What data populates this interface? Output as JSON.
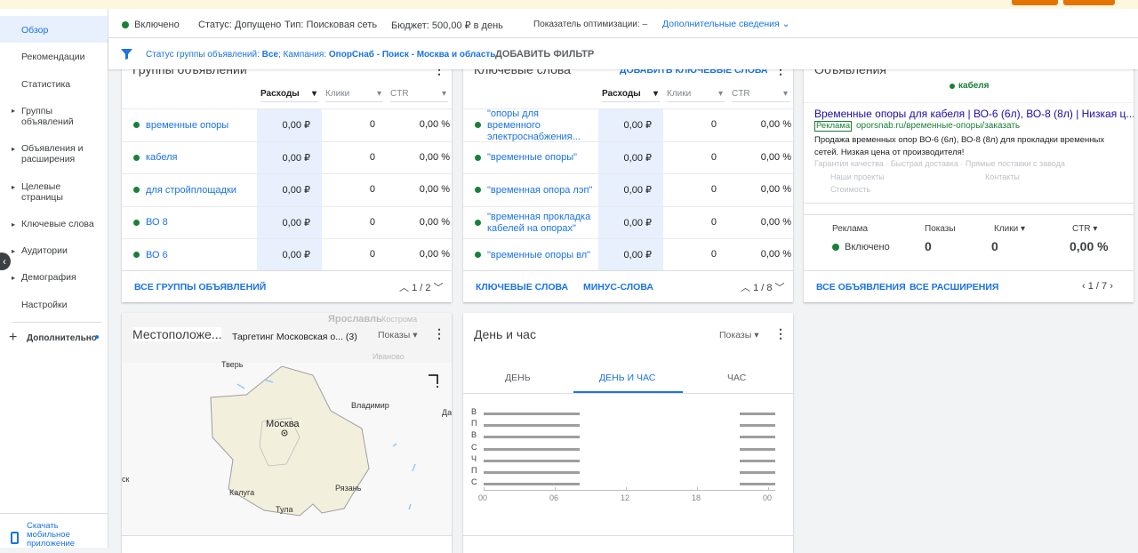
{
  "sidebar": {
    "items": [
      "Обзор",
      "Рекомендации",
      "Статистика",
      "Группы объявлений",
      "Объявления и расширения",
      "Целевые страницы",
      "Ключевые слова",
      "Аудитории",
      "Демография",
      "Настройки"
    ],
    "more": "Дополнительно",
    "mobile": "Скачать мобильное приложение"
  },
  "topbar": {
    "status": "Включено",
    "approval": "Статус: Допущено",
    "type": "Тип: Поисковая сеть",
    "budget": "Бюджет: 500,00 ₽ в день",
    "score": "Показатель оптимизации: –",
    "details": "Дополнительные сведения"
  },
  "filter": {
    "label1": "Статус группы объявлений:",
    "value1": "Все",
    "label2": "; Кампания:",
    "value2": "ОпорСнаб - Поиск - Москва и область",
    "add": "ДОБАВИТЬ ФИЛЬТР"
  },
  "ad_groups": {
    "title": "Группы объявлений",
    "columns": [
      "Расходы",
      "Клики",
      "CTR"
    ],
    "rows": [
      [
        "временные опоры",
        "0,00 ₽",
        "0",
        "0,00 %"
      ],
      [
        "кабеля",
        "0,00 ₽",
        "0",
        "0,00 %"
      ],
      [
        "для стройплощадки",
        "0,00 ₽",
        "0",
        "0,00 %"
      ],
      [
        "ВО 8",
        "0,00 ₽",
        "0",
        "0,00 %"
      ],
      [
        "ВО 6",
        "0,00 ₽",
        "0",
        "0,00 %"
      ]
    ],
    "links": [
      "ВСЕ ГРУППЫ ОБЪЯВЛЕНИЙ"
    ],
    "pager": "1 / 2"
  },
  "keywords": {
    "title": "Ключевые слова",
    "action": "ДОБАВИТЬ КЛЮЧЕВЫЕ СЛОВА",
    "columns": [
      "Расходы",
      "Клики",
      "CTR"
    ],
    "rows": [
      [
        "\"опоры для временного электроснабжения...",
        "0,00 ₽",
        "0",
        "0,00 %"
      ],
      [
        "\"временные опоры\"",
        "0,00 ₽",
        "0",
        "0,00 %"
      ],
      [
        "\"временная опора лэп\"",
        "0,00 ₽",
        "0",
        "0,00 %"
      ],
      [
        "\"временная прокладка кабелей на опорах\"",
        "0,00 ₽",
        "0",
        "0,00 %"
      ],
      [
        "\"временные опоры вл\"",
        "0,00 ₽",
        "0",
        "0,00 %"
      ]
    ],
    "links": [
      "КЛЮЧЕВЫЕ СЛОВА",
      "МИНУС-СЛОВА"
    ],
    "pager": "1 / 8"
  },
  "ads": {
    "title": "Объявления",
    "group": "кабеля",
    "headline": "Временные опоры для кабеля | ВО-6 (6л), ВО-8 (8л) | Низкая ц...",
    "badge": "Реклама",
    "url": "oporsnab.ru/временные-опоры/заказать",
    "description": "Продажа временных опор ВО-6 (6л), ВО-8 (8л) для прокладки временных сетей. Низкая цена от производителя!",
    "callouts": "Гарантия качества · Быстрая доставка · Прямые поставки с завода",
    "sitelinks": [
      "Наши проекты",
      "Контакты",
      "Стоимость"
    ],
    "stats": {
      "labels": [
        "Реклама",
        "Показы",
        "Клики",
        "CTR"
      ],
      "status": "Включено",
      "values": [
        "0",
        "0",
        "0,00 %"
      ]
    },
    "links": [
      "ВСЕ ОБЪЯВЛЕНИЯ",
      "ВСЕ РАСШИРЕНИЯ"
    ],
    "pager": "1 / 7"
  },
  "locations": {
    "title": "Местоположе...",
    "targeting": "Таргетинг Московская о... (3)",
    "metric": "Показы",
    "cities": [
      "Ярославль",
      "Кострома",
      "Тверь",
      "Иваново",
      "Владимир",
      "Москва",
      "Калуга",
      "Рязань",
      "Тула",
      "Да",
      "ск"
    ]
  },
  "schedule": {
    "title": "День и час",
    "metric": "Показы",
    "tabs": [
      "ДЕНЬ",
      "ДЕНЬ И ЧАС",
      "ЧАС"
    ],
    "days": [
      "В",
      "П",
      "В",
      "С",
      "Ч",
      "П",
      "С"
    ],
    "hours": [
      "00",
      "06",
      "12",
      "18",
      "00"
    ]
  }
}
